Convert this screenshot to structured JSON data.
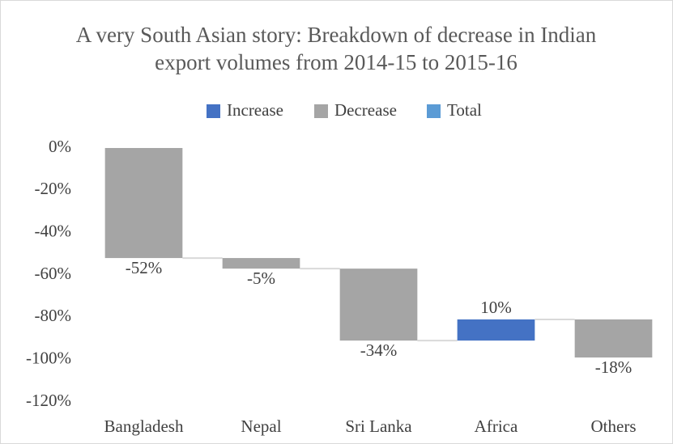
{
  "chart_data": {
    "type": "waterfall",
    "title": [
      "A very South Asian story: Breakdown of decrease in Indian",
      "export volumes from 2014-15 to 2015-16"
    ],
    "legend": [
      {
        "name": "Increase",
        "color": "#4472c4"
      },
      {
        "name": "Decrease",
        "color": "#a5a5a5"
      },
      {
        "name": "Total",
        "color": "#5b9bd5"
      }
    ],
    "categories": [
      "Bangladesh",
      "Nepal",
      "Sri Lanka",
      "Africa",
      "Others"
    ],
    "values": [
      -52,
      -5,
      -34,
      10,
      -18
    ],
    "value_labels": [
      "-52%",
      "-5%",
      "-34%",
      "10%",
      "-18%"
    ],
    "ylim": [
      -120,
      0
    ],
    "yticks": [
      {
        "value": 0,
        "label": "0%"
      },
      {
        "value": -20,
        "label": "-20%"
      },
      {
        "value": -40,
        "label": "-40%"
      },
      {
        "value": -60,
        "label": "-60%"
      },
      {
        "value": -80,
        "label": "-80%"
      },
      {
        "value": -100,
        "label": "-100%"
      },
      {
        "value": -120,
        "label": "-120%"
      }
    ],
    "connector_color": "#d9d9d9"
  }
}
